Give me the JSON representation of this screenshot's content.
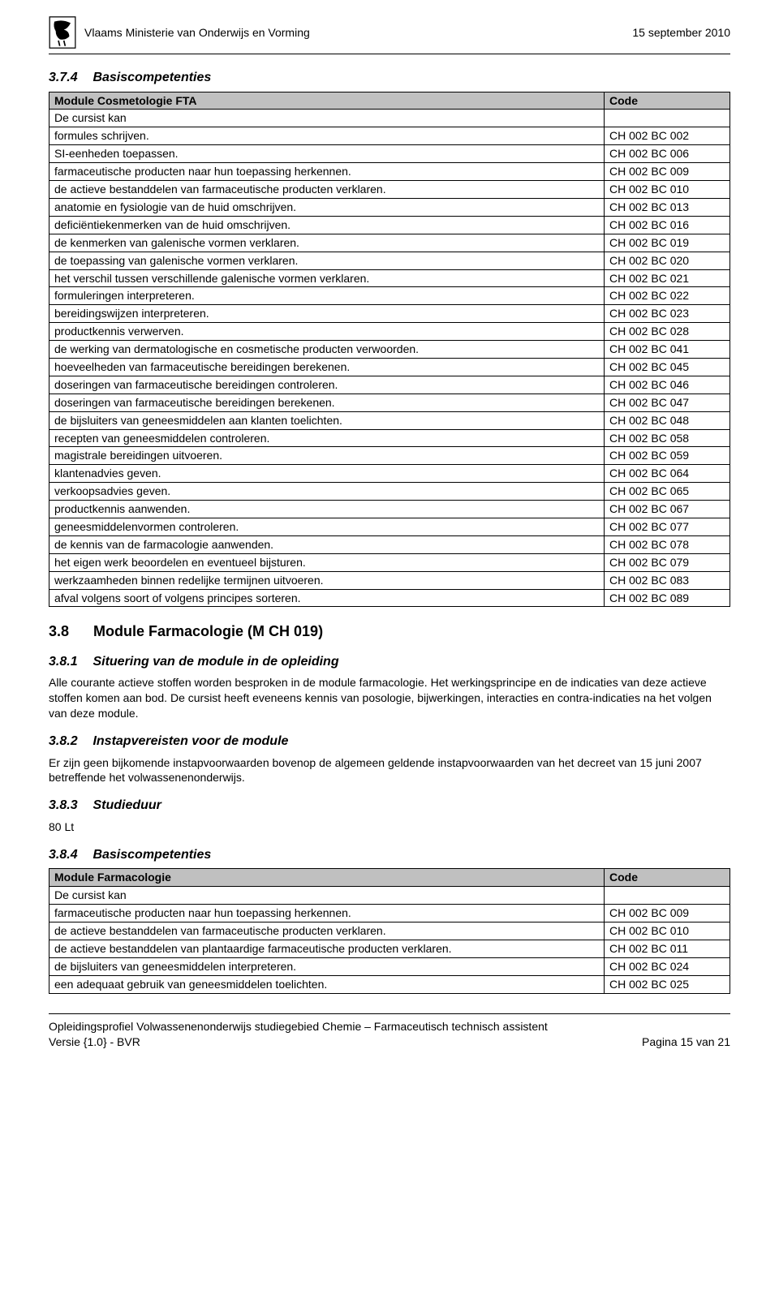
{
  "header": {
    "ministry": "Vlaams Ministerie van Onderwijs en Vorming",
    "date": "15 september 2010"
  },
  "s374": {
    "num": "3.7.4",
    "title": "Basiscompetenties",
    "module_hdr": "Module Cosmetologie FTA",
    "code_hdr": "Code",
    "lead": "De cursist kan",
    "rows": [
      {
        "d": "formules schrijven.",
        "c": "CH 002 BC 002"
      },
      {
        "d": "SI-eenheden toepassen.",
        "c": "CH 002 BC 006"
      },
      {
        "d": "farmaceutische producten naar hun toepassing herkennen.",
        "c": "CH 002 BC 009"
      },
      {
        "d": "de actieve bestanddelen van farmaceutische producten verklaren.",
        "c": "CH 002 BC 010"
      },
      {
        "d": "anatomie en fysiologie van de huid omschrijven.",
        "c": "CH 002 BC 013"
      },
      {
        "d": "deficiëntiekenmerken van de huid omschrijven.",
        "c": "CH 002 BC 016"
      },
      {
        "d": "de kenmerken van galenische vormen verklaren.",
        "c": "CH 002 BC 019"
      },
      {
        "d": "de toepassing van galenische vormen verklaren.",
        "c": "CH 002 BC 020"
      },
      {
        "d": "het verschil tussen verschillende galenische vormen verklaren.",
        "c": "CH 002 BC 021"
      },
      {
        "d": "formuleringen interpreteren.",
        "c": "CH 002 BC 022"
      },
      {
        "d": "bereidingswijzen interpreteren.",
        "c": "CH 002 BC 023"
      },
      {
        "d": "productkennis verwerven.",
        "c": "CH 002 BC 028"
      },
      {
        "d": "de werking van dermatologische en cosmetische producten verwoorden.",
        "c": "CH 002 BC 041"
      },
      {
        "d": "hoeveelheden van farmaceutische bereidingen berekenen.",
        "c": "CH 002 BC 045"
      },
      {
        "d": "doseringen van farmaceutische bereidingen controleren.",
        "c": "CH 002 BC 046"
      },
      {
        "d": "doseringen van farmaceutische bereidingen berekenen.",
        "c": "CH 002 BC 047"
      },
      {
        "d": "de bijsluiters van geneesmiddelen aan klanten toelichten.",
        "c": "CH 002 BC 048"
      },
      {
        "d": "recepten van geneesmiddelen controleren.",
        "c": "CH 002 BC 058"
      },
      {
        "d": "magistrale bereidingen uitvoeren.",
        "c": "CH 002 BC 059"
      },
      {
        "d": "klantenadvies geven.",
        "c": "CH 002 BC 064"
      },
      {
        "d": "verkoopsadvies geven.",
        "c": "CH 002 BC 065"
      },
      {
        "d": "productkennis aanwenden.",
        "c": "CH 002 BC 067"
      },
      {
        "d": "geneesmiddelenvormen controleren.",
        "c": "CH 002 BC 077"
      },
      {
        "d": "de kennis van de farmacologie aanwenden.",
        "c": "CH 002 BC 078"
      },
      {
        "d": "het eigen werk beoordelen en eventueel bijsturen.",
        "c": "CH 002 BC 079"
      },
      {
        "d": "werkzaamheden binnen redelijke termijnen uitvoeren.",
        "c": "CH 002 BC 083"
      },
      {
        "d": "afval volgens soort of volgens principes sorteren.",
        "c": "CH 002 BC 089"
      }
    ]
  },
  "s38": {
    "num": "3.8",
    "title": "Module Farmacologie (M CH 019)"
  },
  "s381": {
    "num": "3.8.1",
    "title": "Situering van de module in de opleiding",
    "body": "Alle courante actieve stoffen worden besproken in de module farmacologie. Het werkingsprincipe en de indicaties van deze actieve stoffen komen aan bod. De cursist heeft eveneens kennis van posologie, bijwerkingen, interacties en contra-indicaties na het volgen van deze module."
  },
  "s382": {
    "num": "3.8.2",
    "title": "Instapvereisten voor de module",
    "body": "Er zijn geen bijkomende instapvoorwaarden bovenop de algemeen geldende instapvoorwaarden van het decreet van 15 juni 2007 betreffende het volwassenenonderwijs."
  },
  "s383": {
    "num": "3.8.3",
    "title": "Studieduur",
    "body": "80 Lt"
  },
  "s384": {
    "num": "3.8.4",
    "title": "Basiscompetenties",
    "module_hdr": "Module Farmacologie",
    "code_hdr": "Code",
    "lead": "De cursist kan",
    "rows": [
      {
        "d": "farmaceutische producten naar hun toepassing herkennen.",
        "c": "CH 002 BC 009"
      },
      {
        "d": "de actieve bestanddelen van farmaceutische producten verklaren.",
        "c": "CH 002 BC 010"
      },
      {
        "d": "de actieve bestanddelen van plantaardige farmaceutische producten verklaren.",
        "c": "CH 002 BC 011"
      },
      {
        "d": "de bijsluiters van geneesmiddelen interpreteren.",
        "c": "CH 002 BC 024"
      },
      {
        "d": "een adequaat gebruik van geneesmiddelen toelichten.",
        "c": "CH 002 BC 025"
      }
    ]
  },
  "footer": {
    "left1": "Opleidingsprofiel Volwassenenonderwijs studiegebied Chemie – Farmaceutisch technisch assistent",
    "left2": "Versie {1.0} - BVR",
    "right": "Pagina 15 van 21"
  }
}
